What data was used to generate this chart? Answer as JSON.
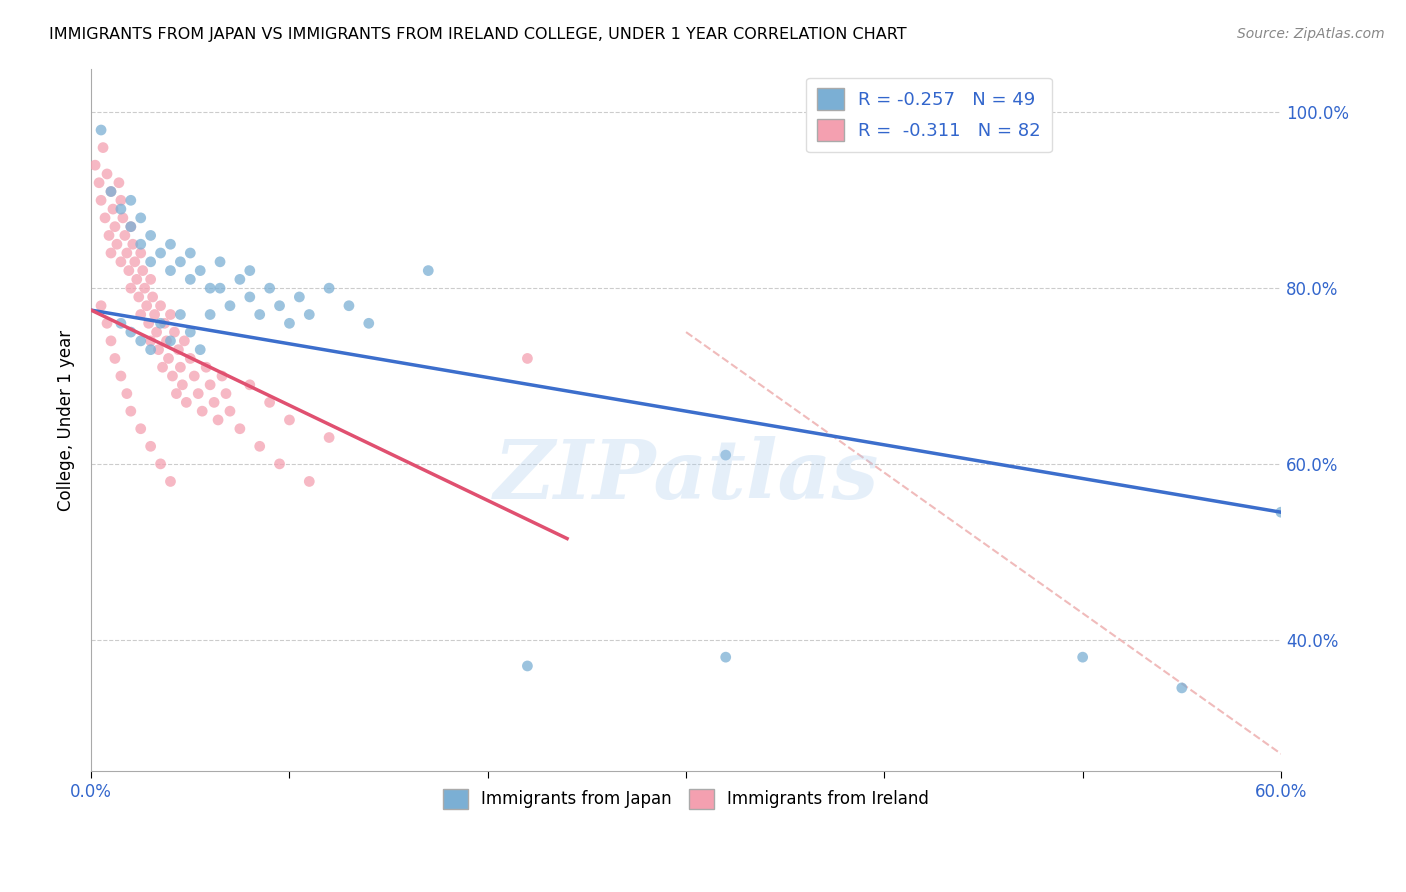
{
  "title": "IMMIGRANTS FROM JAPAN VS IMMIGRANTS FROM IRELAND COLLEGE, UNDER 1 YEAR CORRELATION CHART",
  "source": "Source: ZipAtlas.com",
  "ylabel_label": "College, Under 1 year",
  "xlim": [
    0.0,
    0.6
  ],
  "ylim": [
    0.25,
    1.05
  ],
  "japan_color": "#7BAFD4",
  "ireland_color": "#F4A0B0",
  "japan_R": -0.257,
  "japan_N": 49,
  "ireland_R": -0.311,
  "ireland_N": 82,
  "japan_line_color": "#3C6ECC",
  "ireland_line_color": "#E05070",
  "diag_line_color": "#F0BBBB",
  "watermark": "ZIPatlas",
  "japan_x": [
    0.005,
    0.01,
    0.015,
    0.02,
    0.02,
    0.025,
    0.025,
    0.03,
    0.03,
    0.035,
    0.04,
    0.04,
    0.045,
    0.05,
    0.05,
    0.055,
    0.06,
    0.065,
    0.07,
    0.075,
    0.08,
    0.085,
    0.09,
    0.095,
    0.1,
    0.105,
    0.11,
    0.12,
    0.13,
    0.14,
    0.015,
    0.02,
    0.025,
    0.03,
    0.035,
    0.04,
    0.045,
    0.05,
    0.055,
    0.06,
    0.065,
    0.08,
    0.17,
    0.22,
    0.32,
    0.5,
    0.55,
    0.32,
    0.6
  ],
  "japan_y": [
    0.98,
    0.91,
    0.89,
    0.87,
    0.9,
    0.85,
    0.88,
    0.83,
    0.86,
    0.84,
    0.82,
    0.85,
    0.83,
    0.81,
    0.84,
    0.82,
    0.8,
    0.83,
    0.78,
    0.81,
    0.79,
    0.77,
    0.8,
    0.78,
    0.76,
    0.79,
    0.77,
    0.8,
    0.78,
    0.76,
    0.76,
    0.75,
    0.74,
    0.73,
    0.76,
    0.74,
    0.77,
    0.75,
    0.73,
    0.77,
    0.8,
    0.82,
    0.82,
    0.37,
    0.38,
    0.38,
    0.345,
    0.61,
    0.545
  ],
  "ireland_x": [
    0.002,
    0.004,
    0.005,
    0.006,
    0.007,
    0.008,
    0.009,
    0.01,
    0.01,
    0.011,
    0.012,
    0.013,
    0.014,
    0.015,
    0.015,
    0.016,
    0.017,
    0.018,
    0.019,
    0.02,
    0.02,
    0.021,
    0.022,
    0.023,
    0.024,
    0.025,
    0.025,
    0.026,
    0.027,
    0.028,
    0.029,
    0.03,
    0.03,
    0.031,
    0.032,
    0.033,
    0.034,
    0.035,
    0.036,
    0.037,
    0.038,
    0.039,
    0.04,
    0.041,
    0.042,
    0.043,
    0.044,
    0.045,
    0.046,
    0.047,
    0.048,
    0.05,
    0.052,
    0.054,
    0.056,
    0.058,
    0.06,
    0.062,
    0.064,
    0.066,
    0.068,
    0.07,
    0.075,
    0.08,
    0.085,
    0.09,
    0.095,
    0.1,
    0.11,
    0.12,
    0.005,
    0.008,
    0.01,
    0.012,
    0.015,
    0.018,
    0.02,
    0.025,
    0.03,
    0.035,
    0.04,
    0.22
  ],
  "ireland_y": [
    0.94,
    0.92,
    0.9,
    0.96,
    0.88,
    0.93,
    0.86,
    0.91,
    0.84,
    0.89,
    0.87,
    0.85,
    0.92,
    0.9,
    0.83,
    0.88,
    0.86,
    0.84,
    0.82,
    0.87,
    0.8,
    0.85,
    0.83,
    0.81,
    0.79,
    0.84,
    0.77,
    0.82,
    0.8,
    0.78,
    0.76,
    0.81,
    0.74,
    0.79,
    0.77,
    0.75,
    0.73,
    0.78,
    0.71,
    0.76,
    0.74,
    0.72,
    0.77,
    0.7,
    0.75,
    0.68,
    0.73,
    0.71,
    0.69,
    0.74,
    0.67,
    0.72,
    0.7,
    0.68,
    0.66,
    0.71,
    0.69,
    0.67,
    0.65,
    0.7,
    0.68,
    0.66,
    0.64,
    0.69,
    0.62,
    0.67,
    0.6,
    0.65,
    0.58,
    0.63,
    0.78,
    0.76,
    0.74,
    0.72,
    0.7,
    0.68,
    0.66,
    0.64,
    0.62,
    0.6,
    0.58,
    0.72
  ],
  "japan_line_x": [
    0.0,
    0.6
  ],
  "japan_line_y": [
    0.775,
    0.545
  ],
  "ireland_line_x": [
    0.0,
    0.24
  ],
  "ireland_line_y": [
    0.775,
    0.515
  ],
  "diag_line_x": [
    0.3,
    0.6
  ],
  "diag_line_y": [
    0.75,
    0.27
  ]
}
